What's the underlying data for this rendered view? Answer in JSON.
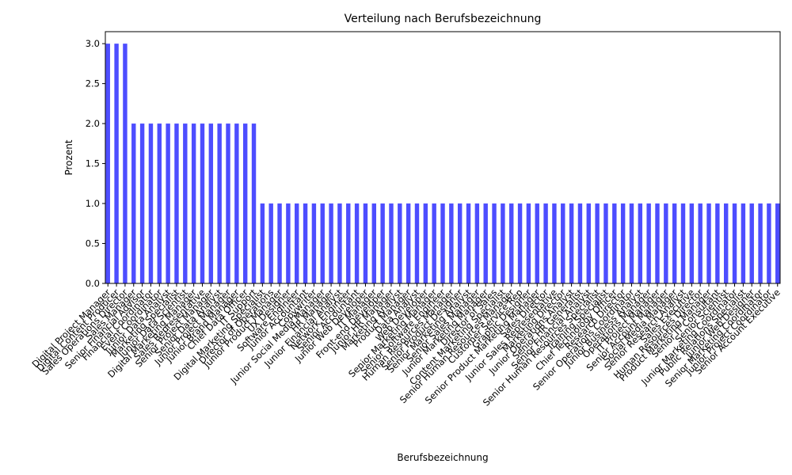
{
  "chart_data": {
    "type": "bar",
    "title": "Verteilung nach Berufsbezeichnung",
    "x_label": "Berufsbezeichnung",
    "y_label": "Prozent",
    "categories": [
      "Digital Project Manager",
      "Digital Content Producer",
      "Sales Operations Director",
      "Sales Manager",
      "Senior Financial Advisor",
      "Financial Coordinator",
      "Event Coordinator",
      "Junior Data Analyst",
      "Marketing Specialist",
      "Junior Data Scientist",
      "Digital Marketing Manager",
      "Sales Representative",
      "Senior Project Manager",
      "Senior Data Analyst",
      "Junior Project Manager",
      "Junior Brand Manager",
      "Chief Data Officer",
      "IT Support",
      "Digital Marketing Specialist",
      "Director of Operations",
      "Junior Product Manager",
      "UX Designer",
      "Software Engineer",
      "Junior Accountant",
      "Copywriter",
      "Junior Social Media Manager",
      "HR Manager",
      "Junior Financial Analyst",
      "Network Engineer",
      "Senior Accountant",
      "Junior Web Developer",
      "IT Manager",
      "Front-end Developer",
      "Junior HR Manager",
      "Marketing Analyst",
      "Product Manager",
      "Data Analyst",
      "Web Developer",
      "Senior Marketing Manager",
      "Senior Software Engineer",
      "Human Resources Manager",
      "Senior Product Designer",
      "Senior Marketing Analyst",
      "Senior Sales Manager",
      "Junior Marketing Manager",
      "Director of Sales",
      "Content Marketing Specialist",
      "Senior Human Resources Manager",
      "Customer Service Rep",
      "Graphic Designer",
      "Senior Product Marketing Manager",
      "Sales Director",
      "Junior Sales Representative",
      "Marketing Director",
      "Junior Operations Analyst",
      "Senior HR Generalist",
      "Senior Financial Analyst",
      "Senior Human Resources Specialist",
      "Training Specialist",
      "Chief Technology Officer",
      "Research Director",
      "Senior Operations Coordinator",
      "Junior Business Analyst",
      "Operations Manager",
      "IT Project Manager",
      "Senior Account Manager",
      "Social Media Manager",
      "Senior Research Analyst",
      "Sales Executive",
      "Human Resources Director",
      "Product Marketing Manager",
      "Senior IT Consultant",
      "Senior Scientist",
      "Junior Marketing Coordinator",
      "Public Relations Specialist",
      "Junior Web Designer",
      "Senior Marketing Coordinator",
      "Junior Project Coordinator",
      "Senior Account Executive"
    ],
    "values": [
      3,
      3,
      3,
      2,
      2,
      2,
      2,
      2,
      2,
      2,
      2,
      2,
      2,
      2,
      2,
      2,
      2,
      2,
      1,
      1,
      1,
      1,
      1,
      1,
      1,
      1,
      1,
      1,
      1,
      1,
      1,
      1,
      1,
      1,
      1,
      1,
      1,
      1,
      1,
      1,
      1,
      1,
      1,
      1,
      1,
      1,
      1,
      1,
      1,
      1,
      1,
      1,
      1,
      1,
      1,
      1,
      1,
      1,
      1,
      1,
      1,
      1,
      1,
      1,
      1,
      1,
      1,
      1,
      1,
      1,
      1,
      1,
      1,
      1,
      1,
      1,
      1,
      1,
      1
    ],
    "color": "#4d4dff",
    "ylim": [
      0,
      3.15
    ],
    "yticks": [
      {
        "value": 0,
        "label": "0.0"
      },
      0.5,
      {
        "value": 1,
        "label": "1.0"
      },
      1.5,
      {
        "value": 2,
        "label": "2.0"
      },
      2.5,
      {
        "value": 3,
        "label": "3.0"
      }
    ],
    "grid": false
  }
}
